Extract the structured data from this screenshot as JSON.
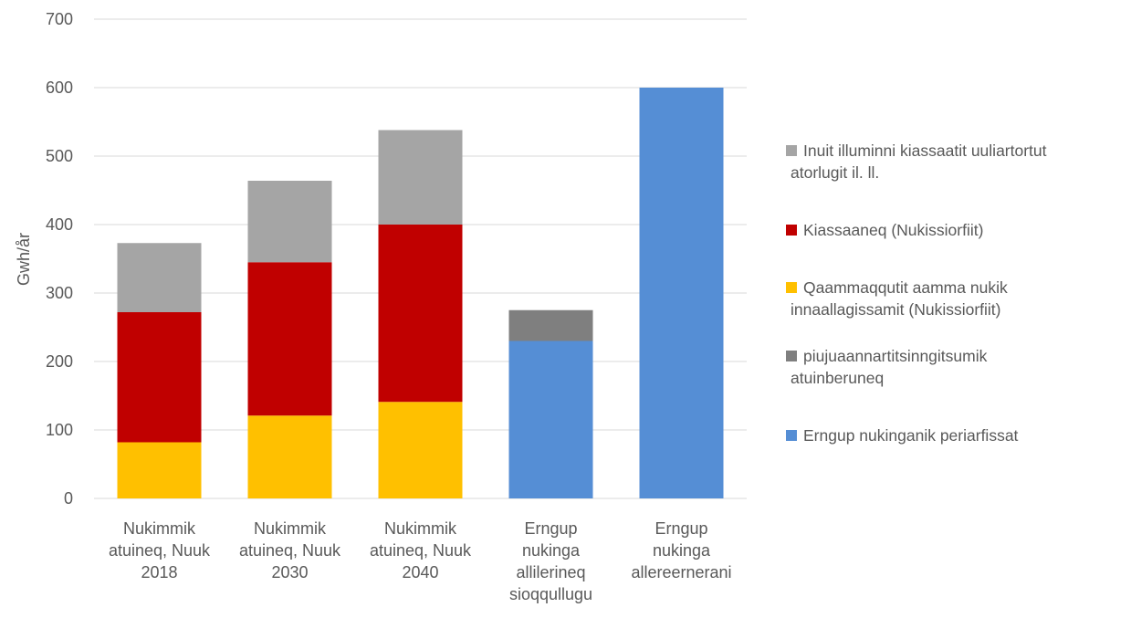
{
  "chart_data": {
    "type": "bar",
    "stacked": true,
    "title": "",
    "ylabel": "Gwh/år",
    "xlabel": "",
    "ylim": [
      0,
      700
    ],
    "yticks": [
      0,
      100,
      200,
      300,
      400,
      500,
      600,
      700
    ],
    "grid": true,
    "legend_position": "right",
    "categories": [
      [
        "Nukimmik",
        "atuineq, Nuuk",
        "2018"
      ],
      [
        "Nukimmik",
        "atuineq, Nuuk",
        "2030"
      ],
      [
        "Nukimmik",
        "atuineq, Nuuk",
        "2040"
      ],
      [
        "Erngup",
        "nukinga",
        "allilerineq",
        "sioqqullugu"
      ],
      [
        "Erngup",
        "nukinga",
        "allereernerani"
      ]
    ],
    "series": [
      {
        "name": "Qaammaqqutit aamma nukik innaallagissamit (Nukissiorfiit)",
        "color": "#FFC000",
        "values": [
          82,
          121,
          141,
          0,
          0
        ]
      },
      {
        "name": "Kiassaaneq (Nukissiorfiit)",
        "color": "#C00000",
        "values": [
          190,
          224,
          259,
          0,
          0
        ]
      },
      {
        "name": "Inuit illuminni kiassaatit uuliartortut atorlugit il. ll.",
        "color": "#A5A5A5",
        "values": [
          101,
          119,
          138,
          0,
          0
        ]
      },
      {
        "name": "Erngup nukinganik periarfissat",
        "color": "#558ED5",
        "values": [
          0,
          0,
          0,
          230,
          600
        ]
      },
      {
        "name": "piujuaannartitsinngitsumik atuinberuneq",
        "color": "#7F7F7F",
        "values": [
          0,
          0,
          0,
          45,
          0
        ]
      }
    ],
    "legend": [
      {
        "lines": [
          "Inuit illuminni kiassaatit uuliartortut",
          "atorlugit il. ll."
        ],
        "series_index": 2
      },
      {
        "lines": [
          "Kiassaaneq (Nukissiorfiit)"
        ],
        "series_index": 1
      },
      {
        "lines": [
          "Qaammaqqutit aamma nukik",
          "innaallagissamit (Nukissiorfiit)"
        ],
        "series_index": 0
      },
      {
        "lines": [
          "piujuaannartitsinngitsumik",
          "atuinberuneq"
        ],
        "series_index": 4
      },
      {
        "lines": [
          "Erngup nukinganik periarfissat"
        ],
        "series_index": 3
      }
    ]
  }
}
